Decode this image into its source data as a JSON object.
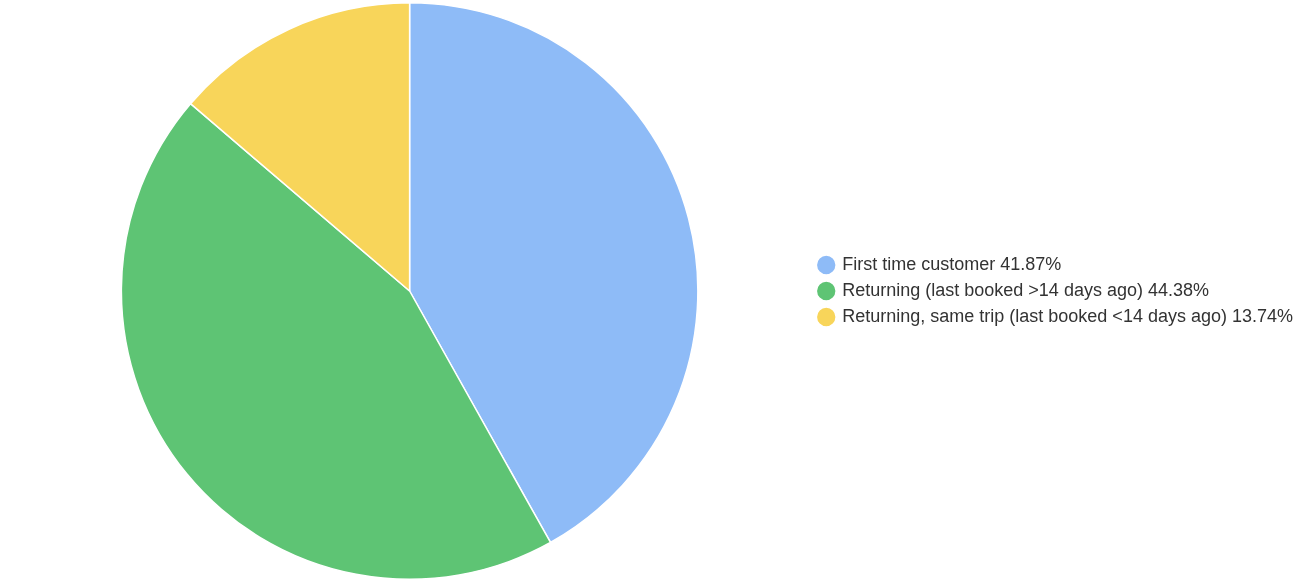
{
  "chart_data": {
    "type": "pie",
    "categories": [
      "First time customer",
      "Returning (last booked >14 days ago)",
      "Returning, same trip (last booked <14 days ago)"
    ],
    "values": [
      41.87,
      44.38,
      13.74
    ],
    "value_labels": [
      "41.87%",
      "44.38%",
      "13.74%"
    ],
    "colors": [
      "#8ebbf7",
      "#5ec474",
      "#f8d55a"
    ],
    "legend": "right"
  }
}
